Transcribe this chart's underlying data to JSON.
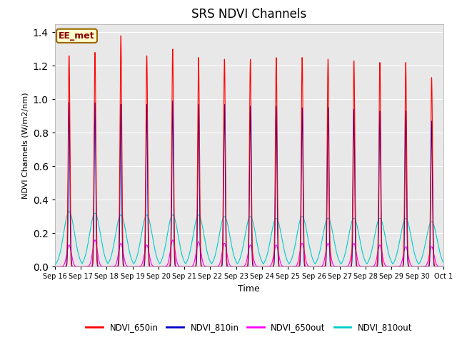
{
  "title": "SRS NDVI Channels",
  "xlabel": "Time",
  "y_label_proper": "NDVI Channels (W/m2/nm)",
  "annotation_text": "EE_met",
  "annotation_bg": "#ffffcc",
  "annotation_border": "#996600",
  "line_colors": {
    "NDVI_650in": "#ff0000",
    "NDVI_810in": "#0000cc",
    "NDVI_650out": "#ff00ff",
    "NDVI_810out": "#00cccc"
  },
  "ylim": [
    0,
    1.45
  ],
  "background_color": "#e8e8e8",
  "grid_color": "#ffffff",
  "peak_650in": [
    1.26,
    1.28,
    1.38,
    1.26,
    1.3,
    1.25,
    1.24,
    1.24,
    1.25,
    1.25,
    1.24,
    1.23,
    1.22,
    1.22,
    1.13
  ],
  "peak_810in": [
    0.98,
    0.98,
    0.97,
    0.97,
    0.99,
    0.97,
    0.97,
    0.96,
    0.96,
    0.95,
    0.95,
    0.94,
    0.93,
    0.93,
    0.87
  ],
  "peak_650out": [
    0.13,
    0.16,
    0.14,
    0.13,
    0.16,
    0.15,
    0.14,
    0.13,
    0.13,
    0.14,
    0.14,
    0.14,
    0.13,
    0.12,
    0.12
  ],
  "peak_810out": [
    0.33,
    0.32,
    0.31,
    0.31,
    0.31,
    0.31,
    0.3,
    0.3,
    0.29,
    0.3,
    0.29,
    0.29,
    0.29,
    0.29,
    0.27
  ]
}
